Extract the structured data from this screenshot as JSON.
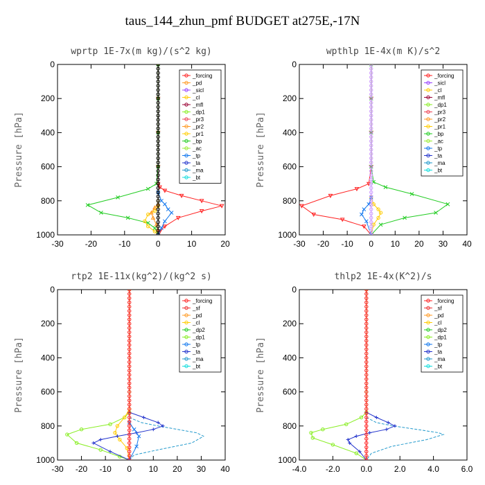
{
  "title": "taus_144_zhun_pmf  BUDGET at275E,-17N",
  "colors": {
    "forcing": "#ff2020",
    "pd": "#ff9922",
    "cl": "#ffcc00",
    "dp2": "#22cc22",
    "dp1": "#88ee22",
    "tp": "#1177ee",
    "ta": "#2233cc",
    "ma": "#2299cc",
    "bt": "#11dddd",
    "sf": "#ee3333",
    "sicl": "#9944ff",
    "mfl": "#990033",
    "pr3": "#ee4455",
    "pr2": "#ff9922",
    "pr1": "#ffcc00",
    "bp": "#22cc22",
    "ac": "#99ee33"
  },
  "chart_data": [
    {
      "type": "line",
      "title": "wprtp   1E-7x(m kg)/(s^2 kg)",
      "ylabel": "Pressure [hPa]",
      "xlim": [
        -30,
        20
      ],
      "ylim": [
        1000,
        0
      ],
      "xticks": [
        "-30",
        "-20",
        "-10",
        "0",
        "10",
        "20"
      ],
      "yticks": [
        "0",
        "200",
        "400",
        "600",
        "800",
        "1000"
      ],
      "legend": [
        "_forcing",
        "_pd",
        "_sicl",
        "_cl",
        "_mfl",
        "_dp1",
        "_pr3",
        "_pr2",
        "_pr1",
        "_bp",
        "_ac",
        "_tp",
        "_ta",
        "_ma",
        "_bt"
      ],
      "series": [
        {
          "name": "_dp1",
          "color": "#ff2020",
          "marker": "v",
          "x": [
            0,
            0,
            0,
            0,
            0,
            0.5,
            2,
            7,
            13,
            19,
            13,
            6,
            2,
            0.5,
            0
          ],
          "y": [
            0,
            200,
            400,
            600,
            700,
            720,
            740,
            770,
            800,
            830,
            860,
            900,
            950,
            980,
            1000
          ]
        },
        {
          "name": "_bp",
          "color": "#22cc22",
          "marker": "x",
          "x": [
            0,
            0,
            0,
            0,
            -0.5,
            -3,
            -12,
            -21,
            -17,
            -9,
            -3,
            -1,
            0
          ],
          "y": [
            0,
            200,
            400,
            600,
            700,
            730,
            780,
            825,
            870,
            900,
            930,
            960,
            1000
          ]
        },
        {
          "name": "_pr1",
          "color": "#ffcc00",
          "marker": "o",
          "x": [
            0,
            0,
            -1,
            -3,
            -4,
            -3,
            -1,
            0
          ],
          "y": [
            800,
            830,
            860,
            880,
            920,
            950,
            980,
            1000
          ]
        },
        {
          "name": "_pr2",
          "color": "#ff9922",
          "marker": "^",
          "x": [
            0,
            -1,
            -2,
            -1.5,
            -0.5,
            0
          ],
          "y": [
            820,
            840,
            870,
            900,
            940,
            1000
          ]
        },
        {
          "name": "_tp",
          "color": "#1177ee",
          "marker": "x",
          "x": [
            0,
            1,
            2,
            3,
            4,
            2,
            1,
            0
          ],
          "y": [
            750,
            800,
            820,
            850,
            870,
            920,
            960,
            1000
          ]
        },
        {
          "name": "_forcing",
          "color": "#000000",
          "marker": "o",
          "x": [
            0,
            0,
            0,
            0,
            0,
            0,
            0
          ],
          "y": [
            0,
            200,
            400,
            600,
            800,
            900,
            1000
          ]
        }
      ]
    },
    {
      "type": "line",
      "title": "wpthlp   1E-4x(m K)/s^2",
      "ylabel": "Pressure [hPa]",
      "xlim": [
        -30,
        40
      ],
      "ylim": [
        1000,
        0
      ],
      "xticks": [
        "-30",
        "-20",
        "-10",
        "0",
        "10",
        "20",
        "30",
        "40"
      ],
      "yticks": [
        "0",
        "200",
        "400",
        "600",
        "800",
        "1000"
      ],
      "legend": [
        "_forcing",
        "_sicl",
        "_cl",
        "_mfl",
        "_dp1",
        "_pr3",
        "_pr2",
        "_pr1",
        "_bp",
        "_ac",
        "_tp",
        "_ta",
        "_ma",
        "_bt"
      ],
      "series": [
        {
          "name": "_dp1",
          "color": "#ff2020",
          "marker": "v",
          "x": [
            0,
            0,
            0,
            0,
            -1,
            -6,
            -17,
            -29,
            -24,
            -12,
            -3,
            0
          ],
          "y": [
            0,
            200,
            400,
            600,
            700,
            730,
            770,
            830,
            880,
            910,
            950,
            1000
          ]
        },
        {
          "name": "_bp",
          "color": "#22cc22",
          "marker": "x",
          "x": [
            0,
            0,
            0,
            0,
            1,
            6,
            17,
            32,
            27,
            14,
            4,
            0
          ],
          "y": [
            0,
            200,
            400,
            600,
            690,
            720,
            760,
            820,
            870,
            900,
            940,
            1000
          ]
        },
        {
          "name": "_pr1",
          "color": "#ffcc00",
          "marker": "o",
          "x": [
            0,
            1,
            3,
            4,
            3,
            1,
            0
          ],
          "y": [
            780,
            820,
            850,
            870,
            900,
            940,
            1000
          ]
        },
        {
          "name": "_tp",
          "color": "#1177ee",
          "marker": "x",
          "x": [
            0,
            -1,
            -3,
            -4,
            -2,
            0
          ],
          "y": [
            780,
            820,
            850,
            880,
            920,
            1000
          ]
        },
        {
          "name": "_forcing",
          "color": "#cc99ff",
          "marker": "o",
          "x": [
            0,
            0,
            0,
            0,
            0,
            0
          ],
          "y": [
            0,
            200,
            400,
            600,
            800,
            1000
          ]
        }
      ]
    },
    {
      "type": "line",
      "title": "rtp2   1E-11x(kg^2)/(kg^2 s)",
      "ylabel": "Pressure [hPa]",
      "xlim": [
        -30,
        40
      ],
      "ylim": [
        1000,
        0
      ],
      "xticks": [
        "-30",
        "-20",
        "-10",
        "0",
        "10",
        "20",
        "30",
        "40"
      ],
      "yticks": [
        "0",
        "200",
        "400",
        "600",
        "800",
        "1000"
      ],
      "legend": [
        "_forcing",
        "_sf",
        "_pd",
        "_cl",
        "_dp2",
        "_dp1",
        "_tp",
        "_ta",
        "_ma",
        "_bt"
      ],
      "series": [
        {
          "name": "_dp1",
          "color": "#88ee22",
          "marker": "o",
          "x": [
            0,
            0,
            0,
            -2,
            -8,
            -20,
            -26,
            -22,
            -12,
            -4,
            0
          ],
          "y": [
            0,
            600,
            720,
            750,
            790,
            820,
            850,
            900,
            940,
            980,
            1000
          ]
        },
        {
          "name": "_cl",
          "color": "#ffcc00",
          "marker": "o",
          "x": [
            0,
            -2,
            -5,
            -6,
            -4,
            -1,
            0
          ],
          "y": [
            700,
            750,
            800,
            840,
            880,
            930,
            1000
          ]
        },
        {
          "name": "_ma",
          "color": "#2299cc",
          "marker": "--",
          "x": [
            0,
            5,
            12,
            20,
            28,
            31,
            26,
            12,
            2,
            0
          ],
          "y": [
            750,
            780,
            800,
            820,
            840,
            860,
            900,
            940,
            970,
            1000
          ]
        },
        {
          "name": "_ta",
          "color": "#2233cc",
          "marker": "+",
          "x": [
            0,
            6,
            12,
            14,
            10,
            3,
            -5,
            -12,
            -15,
            -8,
            0
          ],
          "y": [
            720,
            750,
            780,
            800,
            820,
            840,
            860,
            880,
            900,
            950,
            1000
          ]
        },
        {
          "name": "_tp",
          "color": "#1177ee",
          "marker": "x",
          "x": [
            0,
            2,
            4,
            3,
            0
          ],
          "y": [
            780,
            820,
            860,
            920,
            1000
          ]
        },
        {
          "name": "_forcing",
          "color": "#ff2020",
          "marker": "o",
          "x": [
            0,
            0,
            0,
            0,
            0,
            0,
            0
          ],
          "y": [
            0,
            200,
            400,
            600,
            800,
            900,
            1000
          ]
        }
      ]
    },
    {
      "type": "line",
      "title": "thlp2   1E-4x(K^2)/s",
      "ylabel": "Pressure [hPa]",
      "xlim": [
        -4.0,
        6.0
      ],
      "ylim": [
        1000,
        0
      ],
      "xticks": [
        "-4.0",
        "-2.0",
        "0.0",
        "2.0",
        "4.0",
        "6.0"
      ],
      "yticks": [
        "0",
        "200",
        "400",
        "600",
        "800",
        "1000"
      ],
      "legend": [
        "_forcing",
        "_sf",
        "_pd",
        "_cl",
        "_dp2",
        "_dp1",
        "_tp",
        "_ta",
        "_ma",
        "_bt"
      ],
      "series": [
        {
          "name": "_dp1",
          "color": "#88ee22",
          "marker": "o",
          "x": [
            0,
            0,
            0,
            -0.3,
            -1.2,
            -2.6,
            -3.3,
            -3.2,
            -2.0,
            -0.6,
            0
          ],
          "y": [
            0,
            600,
            720,
            750,
            790,
            820,
            840,
            870,
            910,
            960,
            1000
          ]
        },
        {
          "name": "_ma",
          "color": "#2299cc",
          "marker": "--",
          "x": [
            0,
            0.6,
            1.6,
            3.0,
            4.3,
            4.6,
            3.6,
            1.5,
            0.3,
            0
          ],
          "y": [
            750,
            780,
            800,
            820,
            840,
            850,
            880,
            920,
            960,
            1000
          ]
        },
        {
          "name": "_ta",
          "color": "#2233cc",
          "marker": "+",
          "x": [
            0,
            0.6,
            1.3,
            1.7,
            1.2,
            0.2,
            -0.6,
            -1.1,
            -1.0,
            -0.4,
            0
          ],
          "y": [
            720,
            750,
            780,
            800,
            820,
            840,
            860,
            880,
            900,
            950,
            1000
          ]
        },
        {
          "name": "_forcing",
          "color": "#ff2020",
          "marker": "o",
          "x": [
            0,
            0,
            0,
            0,
            0,
            0,
            0
          ],
          "y": [
            0,
            200,
            400,
            600,
            800,
            900,
            1000
          ]
        }
      ]
    }
  ]
}
